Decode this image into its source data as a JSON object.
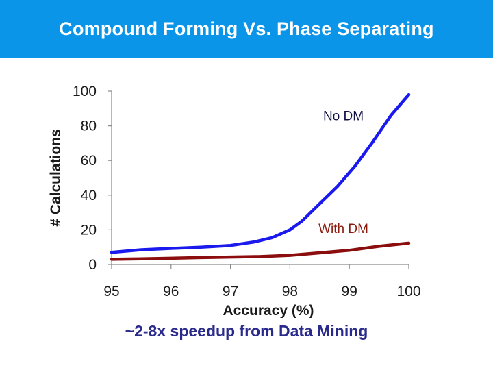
{
  "slide": {
    "title": "Compound Forming Vs. Phase Separating",
    "caption": "~2-8x speedup from Data Mining",
    "title_bar_color": "#0b95e8"
  },
  "chart_data": {
    "type": "line",
    "xlabel": "Accuracy (%)",
    "ylabel": "# Calculations",
    "xlim": [
      95,
      100
    ],
    "ylim": [
      0,
      100
    ],
    "xticks": [
      "95",
      "96",
      "97",
      "98",
      "99",
      "100"
    ],
    "yticks": [
      "0",
      "20",
      "40",
      "60",
      "80",
      "100"
    ],
    "grid": false,
    "legend": "none",
    "series": [
      {
        "name": "No DM",
        "color": "#1a1aee",
        "x": [
          95,
          95.5,
          96,
          96.5,
          97,
          97.4,
          97.7,
          98,
          98.2,
          98.5,
          98.8,
          99.1,
          99.4,
          99.7,
          100
        ],
        "y": [
          7,
          8.5,
          9.3,
          10,
          11,
          13,
          15.5,
          20,
          25,
          35,
          45,
          57,
          71,
          86,
          98
        ]
      },
      {
        "name": "With DM",
        "color": "#8b0d0d",
        "x": [
          95,
          95.5,
          96,
          96.5,
          97,
          97.5,
          98,
          98.5,
          99,
          99.5,
          100
        ],
        "y": [
          3,
          3.3,
          3.6,
          4,
          4.3,
          4.6,
          5.3,
          6.7,
          8.2,
          10.5,
          12.3
        ]
      }
    ],
    "annotations": [
      {
        "text": "No DM",
        "color": "#111144",
        "x": 98.9,
        "y": 86
      },
      {
        "text": "With DM",
        "color": "#8b1a0d",
        "x": 98.9,
        "y": 21
      }
    ]
  }
}
